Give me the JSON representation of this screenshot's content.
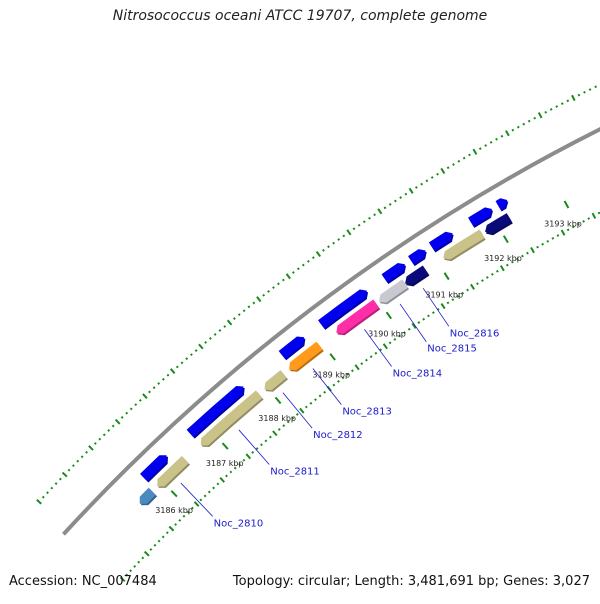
{
  "title": "Nitrosococcus oceani ATCC 19707, complete genome",
  "footer": {
    "accession": "Accession: NC_007484",
    "info": "Topology: circular; Length: 3,481,691 bp; Genes: 3,027"
  },
  "map": {
    "units": "kbp",
    "colors": {
      "backbone": "#8c8c8c",
      "forward_cds": "#0000ee",
      "tick": "#1a8a1a",
      "gene_label": "#1a1acc"
    },
    "kbp_labels": [
      "3186 kbp",
      "3187 kbp",
      "3188 kbp",
      "3189 kbp",
      "3190 kbp",
      "3191 kbp",
      "3192 kbp",
      "3193 kbp"
    ],
    "forward_genes": [
      {
        "start_kbp": 3185.85,
        "end_kbp": 3186.3,
        "color": "#0000ee"
      },
      {
        "start_kbp": 3186.75,
        "end_kbp": 3187.75,
        "color": "#0000ee"
      },
      {
        "start_kbp": 3188.45,
        "end_kbp": 3188.85,
        "color": "#0000ee"
      },
      {
        "start_kbp": 3189.15,
        "end_kbp": 3189.95,
        "color": "#0000ee"
      },
      {
        "start_kbp": 3190.25,
        "end_kbp": 3190.6,
        "color": "#0000ee"
      },
      {
        "start_kbp": 3190.7,
        "end_kbp": 3190.95,
        "color": "#0000ee"
      },
      {
        "start_kbp": 3191.05,
        "end_kbp": 3191.4,
        "color": "#0000ee"
      },
      {
        "start_kbp": 3191.7,
        "end_kbp": 3192.05,
        "color": "#0000ee"
      },
      {
        "start_kbp": 3192.15,
        "end_kbp": 3192.3,
        "color": "#0000ee"
      }
    ],
    "reverse_genes": [
      {
        "name": "Noc_2810",
        "start_kbp": 3185.9,
        "end_kbp": 3186.45,
        "color": "#c9c38a"
      },
      {
        "name": "Noc_2811",
        "start_kbp": 3186.75,
        "end_kbp": 3187.85,
        "color": "#c9c38a"
      },
      {
        "name": "Noc_2812",
        "start_kbp": 3187.95,
        "end_kbp": 3188.3,
        "color": "#c9c38a"
      },
      {
        "name": "Noc_2813",
        "start_kbp": 3188.4,
        "end_kbp": 3188.95,
        "color": "#ff9a1a"
      },
      {
        "name": "Noc_2814",
        "start_kbp": 3189.25,
        "end_kbp": 3189.95,
        "color": "#ff2ea8"
      },
      {
        "name": "Noc_2815",
        "start_kbp": 3190.0,
        "end_kbp": 3190.45,
        "color": "#c8c8d0"
      },
      {
        "name": "Noc_2816",
        "start_kbp": 3190.45,
        "end_kbp": 3190.8,
        "color": "#0a0a7a"
      },
      {
        "start_kbp": 3185.55,
        "end_kbp": 3185.8,
        "color": "#4a8ac0"
      },
      {
        "start_kbp": 3191.1,
        "end_kbp": 3191.75,
        "color": "#c9c38a"
      },
      {
        "start_kbp": 3191.8,
        "end_kbp": 3192.2,
        "color": "#0a0a7a"
      }
    ]
  }
}
